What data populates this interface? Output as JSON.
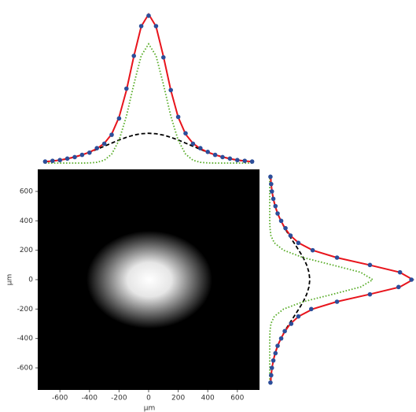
{
  "chart_data": [
    {
      "type": "image",
      "xlabel": "µm",
      "ylabel": "µm",
      "xlim": [
        -750,
        750
      ],
      "ylim": [
        -750,
        750
      ],
      "xticks": [
        -600,
        -400,
        -200,
        0,
        200,
        400,
        600
      ],
      "yticks": [
        600,
        400,
        200,
        0,
        -200,
        -400,
        -600
      ]
    },
    {
      "type": "line",
      "orientation": "horizontal",
      "x": [
        -700,
        -650,
        -600,
        -550,
        -500,
        -450,
        -400,
        -350,
        -300,
        -250,
        -200,
        -150,
        -100,
        -50,
        0,
        50,
        100,
        150,
        200,
        250,
        300,
        350,
        400,
        450,
        500,
        550,
        600,
        650,
        700
      ],
      "series": [
        {
          "color": "#000000",
          "style": "dashed",
          "values": [
            0.009,
            0.014,
            0.02,
            0.029,
            0.041,
            0.055,
            0.072,
            0.092,
            0.113,
            0.134,
            0.155,
            0.173,
            0.188,
            0.197,
            0.2,
            0.197,
            0.188,
            0.173,
            0.155,
            0.134,
            0.113,
            0.092,
            0.072,
            0.055,
            0.041,
            0.029,
            0.02,
            0.014,
            0.009
          ]
        },
        {
          "color": "#5aad2a",
          "style": "dotted",
          "values": [
            0,
            0,
            0,
            0,
            0,
            0,
            0.001,
            0.005,
            0.019,
            0.06,
            0.153,
            0.316,
            0.529,
            0.721,
            0.8,
            0.721,
            0.529,
            0.316,
            0.153,
            0.06,
            0.019,
            0.005,
            0.001,
            0,
            0,
            0,
            0,
            0,
            0
          ]
        },
        {
          "color": "#e8141c",
          "style": "solid",
          "values": [
            0.009,
            0.014,
            0.02,
            0.029,
            0.041,
            0.055,
            0.073,
            0.097,
            0.132,
            0.194,
            0.308,
            0.489,
            0.717,
            0.918,
            1.0,
            0.918,
            0.717,
            0.489,
            0.308,
            0.194,
            0.132,
            0.097,
            0.073,
            0.055,
            0.041,
            0.029,
            0.02,
            0.014,
            0.009
          ]
        },
        {
          "color": "#2c4e9a",
          "style": "markers",
          "values": [
            0.01,
            0.015,
            0.02,
            0.03,
            0.04,
            0.055,
            0.07,
            0.1,
            0.13,
            0.19,
            0.3,
            0.5,
            0.72,
            0.92,
            0.99,
            0.92,
            0.71,
            0.49,
            0.31,
            0.2,
            0.13,
            0.1,
            0.075,
            0.055,
            0.04,
            0.03,
            0.02,
            0.015,
            0.01
          ]
        }
      ]
    },
    {
      "type": "line",
      "orientation": "vertical",
      "y": [
        -700,
        -650,
        -600,
        -550,
        -500,
        -450,
        -400,
        -350,
        -300,
        -250,
        -200,
        -150,
        -100,
        -50,
        0,
        50,
        100,
        150,
        200,
        250,
        300,
        350,
        400,
        450,
        500,
        550,
        600,
        650,
        700
      ],
      "series": [
        {
          "color": "#000000",
          "style": "dashed",
          "values": [
            0.006,
            0.01,
            0.016,
            0.025,
            0.038,
            0.055,
            0.078,
            0.105,
            0.136,
            0.17,
            0.203,
            0.234,
            0.258,
            0.274,
            0.28,
            0.274,
            0.258,
            0.234,
            0.203,
            0.17,
            0.136,
            0.105,
            0.078,
            0.055,
            0.038,
            0.025,
            0.016,
            0.01,
            0.006
          ]
        },
        {
          "color": "#5aad2a",
          "style": "dotted",
          "values": [
            0,
            0,
            0,
            0,
            0,
            0,
            0,
            0.002,
            0.008,
            0.032,
            0.097,
            0.234,
            0.437,
            0.635,
            0.72,
            0.635,
            0.437,
            0.234,
            0.097,
            0.032,
            0.008,
            0.002,
            0,
            0,
            0,
            0,
            0,
            0,
            0
          ]
        },
        {
          "color": "#e8141c",
          "style": "solid",
          "values": [
            0.006,
            0.01,
            0.016,
            0.025,
            0.038,
            0.055,
            0.078,
            0.107,
            0.144,
            0.202,
            0.3,
            0.468,
            0.695,
            0.909,
            1.0,
            0.909,
            0.695,
            0.468,
            0.3,
            0.202,
            0.144,
            0.107,
            0.078,
            0.055,
            0.038,
            0.025,
            0.016,
            0.01,
            0.006
          ]
        },
        {
          "color": "#2c4e9a",
          "style": "markers",
          "values": [
            0.005,
            0.01,
            0.015,
            0.025,
            0.04,
            0.055,
            0.08,
            0.105,
            0.15,
            0.2,
            0.29,
            0.47,
            0.7,
            0.9,
            0.99,
            0.91,
            0.7,
            0.47,
            0.3,
            0.2,
            0.145,
            0.11,
            0.08,
            0.055,
            0.04,
            0.025,
            0.015,
            0.01,
            0.005
          ]
        }
      ]
    }
  ]
}
